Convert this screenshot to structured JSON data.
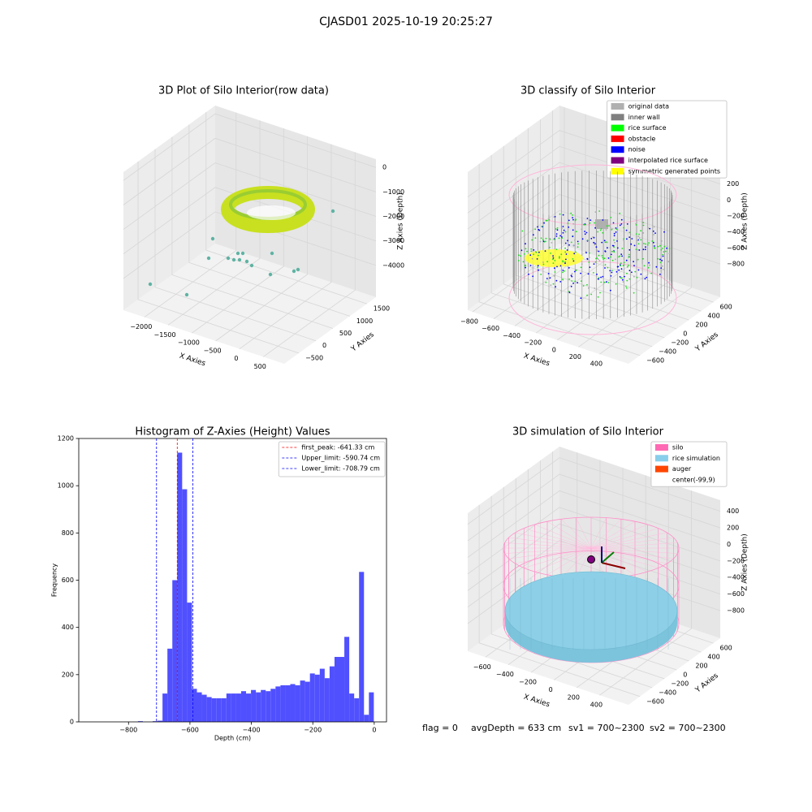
{
  "title": "CJASD01 2025-10-19 20:25:27",
  "chart_data": [
    {
      "type": "scatter3d",
      "title": "3D Plot of Silo Interior(row data)",
      "xlabel": "X Axies",
      "ylabel": "Y Axies",
      "zlabel": "Z Axies (Depth)",
      "xlim": [
        -2440,
        940
      ],
      "ylim": [
        -932,
        1768
      ],
      "zlim": [
        -5296,
        338
      ],
      "xticks": [
        {
          "value": -2000,
          "label": "−2000"
        },
        {
          "value": -1500,
          "label": "−1500"
        },
        {
          "value": -1000,
          "label": "−1000"
        },
        {
          "value": -500,
          "label": "−500"
        },
        0,
        500
      ],
      "yticks": [
        {
          "value": -500,
          "label": "−500"
        },
        0,
        500,
        1000,
        1500
      ],
      "zticks": [
        0,
        {
          "value": -1000,
          "label": "−1000"
        },
        {
          "value": -2000,
          "label": "−2000"
        },
        {
          "value": -3000,
          "label": "−3000"
        },
        {
          "value": -4000,
          "label": "−4000"
        }
      ]
    },
    {
      "type": "scatter3d",
      "title": "3D classify of Silo Interior",
      "xlabel": "X Axies",
      "ylabel": "Y Axies",
      "zlabel": "Z Axies (Depth)",
      "xlim": [
        -846,
        673
      ],
      "ylim": [
        -787,
        713
      ],
      "zlim": [
        -1214,
        510
      ],
      "xticks": [
        {
          "value": -800,
          "label": "−800"
        },
        {
          "value": -600,
          "label": "−600"
        },
        {
          "value": -400,
          "label": "−400"
        },
        {
          "value": -200,
          "label": "−200"
        },
        0,
        200,
        400
      ],
      "yticks": [
        {
          "value": -600,
          "label": "−600"
        },
        {
          "value": -400,
          "label": "−400"
        },
        {
          "value": -200,
          "label": "−200"
        },
        0,
        200,
        400,
        600
      ],
      "zticks": [
        200,
        0,
        {
          "value": -200,
          "label": "−200"
        },
        {
          "value": -400,
          "label": "−400"
        },
        {
          "value": -600,
          "label": "−600"
        },
        {
          "value": -800,
          "label": "−800"
        }
      ],
      "legend": [
        {
          "name": "original data",
          "color": "#b0b0b0"
        },
        {
          "name": "inner wall",
          "color": "#808080"
        },
        {
          "name": "rice surface",
          "color": "#00ff00"
        },
        {
          "name": "obstacle",
          "color": "#ff0000"
        },
        {
          "name": "noise",
          "color": "#0000ff"
        },
        {
          "name": "interpolated rice surface",
          "color": "#800080"
        },
        {
          "name": "symmetric generated points",
          "color": "#ffff00"
        }
      ]
    },
    {
      "type": "histogram",
      "title": "Histogram of Z-Axies (Height) Values",
      "xlabel": "Depth (cm)",
      "ylabel": "Frequency",
      "color": "#5050ff",
      "bins": [
        -881.33,
        -865.33,
        -849.33,
        -833.33,
        -817.33,
        -801.33,
        -785.33,
        -769.33,
        -753.33,
        -737.33,
        -721.33,
        -705.33,
        -689.33,
        -673.33,
        -657.33,
        -641.33,
        -625.33,
        -609.33,
        -593.33,
        -577.33,
        -561.33,
        -545.33,
        -529.33,
        -513.33,
        -497.33,
        -481.33,
        -465.33,
        -449.33,
        -433.33,
        -417.33,
        -401.33,
        -385.33,
        -369.33,
        -353.33,
        -337.33,
        -321.33,
        -305.33,
        -289.33,
        -273.33,
        -257.33,
        -241.33,
        -225.33,
        -209.33,
        -193.33,
        -177.33,
        -161.33,
        -145.33,
        -129.33,
        -113.33,
        -97.33,
        -81.33,
        -65.33,
        -49.33,
        -33.33,
        -17.33,
        -1.33,
        14.67
      ],
      "values": [
        0,
        0,
        0,
        0,
        0,
        0,
        0,
        3,
        0,
        0,
        3,
        5,
        120,
        310,
        600,
        1140,
        985,
        505,
        140,
        125,
        115,
        105,
        100,
        100,
        100,
        120,
        120,
        120,
        130,
        120,
        135,
        125,
        135,
        130,
        140,
        150,
        155,
        155,
        160,
        155,
        175,
        170,
        205,
        200,
        225,
        185,
        235,
        275,
        275,
        360,
        120,
        100,
        635,
        30,
        125,
        0
      ],
      "xlim": [
        -962,
        40
      ],
      "ylim": [
        0,
        1200
      ],
      "xticks": [
        {
          "value": -800,
          "label": "−800"
        },
        {
          "value": -600,
          "label": "−600"
        },
        {
          "value": -400,
          "label": "−400"
        },
        {
          "value": -200,
          "label": "−200"
        },
        0
      ],
      "yticks": [
        0,
        200,
        400,
        600,
        800,
        1000,
        1200
      ],
      "vlines": [
        {
          "name": "first_peak: -641.33 cm",
          "value": -641.33,
          "color": "#ff0000"
        },
        {
          "name": "Upper_limit: -590.74 cm",
          "value": -590.74,
          "color": "#0000ff"
        },
        {
          "name": "Lower_limit: -708.79 cm",
          "value": -708.79,
          "color": "#0000ff"
        }
      ]
    },
    {
      "type": "scatter3d",
      "title": "3D simulation of Silo Interior",
      "xlabel": "X Axies",
      "ylabel": "Y Axies",
      "zlabel": "Z Axies (Depth)",
      "xlim": [
        -755,
        653
      ],
      "ylim": [
        -787,
        713
      ],
      "zlim": [
        -1133,
        534
      ],
      "xticks": [
        {
          "value": -600,
          "label": "−600"
        },
        {
          "value": -400,
          "label": "−400"
        },
        {
          "value": -200,
          "label": "−200"
        },
        0,
        200,
        400
      ],
      "yticks": [
        {
          "value": -600,
          "label": "−600"
        },
        {
          "value": -400,
          "label": "−400"
        },
        {
          "value": -200,
          "label": "−200"
        },
        0,
        200,
        400,
        600
      ],
      "zticks": [
        400,
        200,
        0,
        {
          "value": -200,
          "label": "−200"
        },
        {
          "value": -400,
          "label": "−400"
        },
        {
          "value": -600,
          "label": "−600"
        },
        {
          "value": -800,
          "label": "−800"
        }
      ],
      "legend": [
        {
          "name": "silo",
          "color": "#ff69b4"
        },
        {
          "name": "rice simulation",
          "color": "#87ceeb"
        },
        {
          "name": "auger",
          "color": "#ff4500"
        },
        {
          "name": "center(-99,9)"
        }
      ]
    }
  ],
  "footer": [
    "flag = 0",
    "avgDepth = 633 cm",
    "sv1 = 700~2300",
    "sv2 = 700~2300"
  ]
}
